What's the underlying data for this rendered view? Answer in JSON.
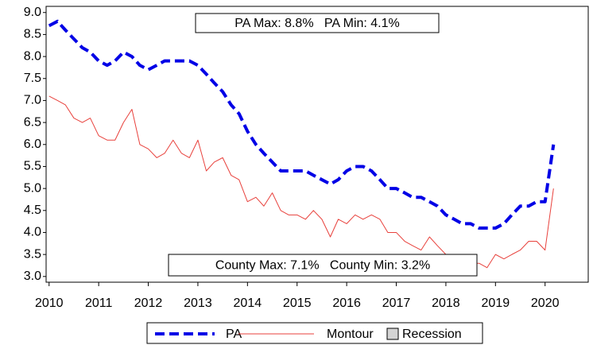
{
  "chart_data": {
    "type": "line",
    "annotations": [
      "PA Max: 8.8%   PA Min: 4.1%",
      "County Max: 7.1%   County Min: 3.2%"
    ],
    "x": [
      2010,
      2010.17,
      2010.33,
      2010.5,
      2010.67,
      2010.83,
      2011,
      2011.17,
      2011.33,
      2011.5,
      2011.67,
      2011.83,
      2012,
      2012.17,
      2012.33,
      2012.5,
      2012.67,
      2012.83,
      2013,
      2013.17,
      2013.33,
      2013.5,
      2013.67,
      2013.83,
      2014,
      2014.17,
      2014.33,
      2014.5,
      2014.67,
      2014.83,
      2015,
      2015.17,
      2015.33,
      2015.5,
      2015.67,
      2015.83,
      2016,
      2016.17,
      2016.33,
      2016.5,
      2016.67,
      2016.83,
      2017,
      2017.17,
      2017.33,
      2017.5,
      2017.67,
      2017.83,
      2018,
      2018.17,
      2018.33,
      2018.5,
      2018.67,
      2018.83,
      2019,
      2019.17,
      2019.33,
      2019.5,
      2019.67,
      2019.83,
      2020,
      2020.17
    ],
    "series": [
      {
        "name": "PA",
        "color": "#0000e6",
        "dashed": true,
        "values": [
          8.7,
          8.8,
          8.6,
          8.4,
          8.2,
          8.1,
          7.9,
          7.8,
          7.9,
          8.1,
          8.0,
          7.8,
          7.7,
          7.8,
          7.9,
          7.9,
          7.9,
          7.9,
          7.8,
          7.6,
          7.4,
          7.2,
          6.9,
          6.7,
          6.3,
          6.0,
          5.8,
          5.6,
          5.4,
          5.4,
          5.4,
          5.4,
          5.3,
          5.2,
          5.1,
          5.2,
          5.4,
          5.5,
          5.5,
          5.4,
          5.2,
          5.0,
          5.0,
          4.9,
          4.8,
          4.8,
          4.7,
          4.6,
          4.4,
          4.3,
          4.2,
          4.2,
          4.1,
          4.1,
          4.1,
          4.2,
          4.4,
          4.6,
          4.6,
          4.7,
          4.7,
          6.0
        ]
      },
      {
        "name": "Montour",
        "color": "#e8413c",
        "dashed": false,
        "values": [
          7.1,
          7.0,
          6.9,
          6.6,
          6.5,
          6.6,
          6.2,
          6.1,
          6.1,
          6.5,
          6.8,
          6.0,
          5.9,
          5.7,
          5.8,
          6.1,
          5.8,
          5.7,
          6.1,
          5.4,
          5.6,
          5.7,
          5.3,
          5.2,
          4.7,
          4.8,
          4.6,
          4.9,
          4.5,
          4.4,
          4.4,
          4.3,
          4.5,
          4.3,
          3.9,
          4.3,
          4.2,
          4.4,
          4.3,
          4.4,
          4.3,
          4.0,
          4.0,
          3.8,
          3.7,
          3.6,
          3.9,
          3.7,
          3.5,
          3.5,
          3.4,
          3.3,
          3.3,
          3.2,
          3.5,
          3.4,
          3.5,
          3.6,
          3.8,
          3.8,
          3.6,
          5.0
        ]
      }
    ],
    "recession": {
      "name": "Recession",
      "color": "#d4d4d4"
    },
    "xlim": [
      2009.94,
      2020.87
    ],
    "xticks": [
      2010,
      2011,
      2012,
      2013,
      2014,
      2015,
      2016,
      2017,
      2018,
      2019,
      2020
    ],
    "ylim": [
      2.87,
      9.14
    ],
    "yticks": [
      {
        "value": 3,
        "label": "3.0"
      },
      {
        "value": 3.5,
        "label": "3.5"
      },
      {
        "value": 4,
        "label": "4.0"
      },
      {
        "value": 4.5,
        "label": "4.5"
      },
      {
        "value": 5,
        "label": "5.0"
      },
      {
        "value": 5.5,
        "label": "5.5"
      },
      {
        "value": 6,
        "label": "6.0"
      },
      {
        "value": 6.5,
        "label": "6.5"
      },
      {
        "value": 7,
        "label": "7.0"
      },
      {
        "value": 7.5,
        "label": "7.5"
      },
      {
        "value": 8,
        "label": "8.0"
      },
      {
        "value": 8.5,
        "label": "8.5"
      },
      {
        "value": 9,
        "label": "9.0"
      }
    ],
    "grid": false
  }
}
